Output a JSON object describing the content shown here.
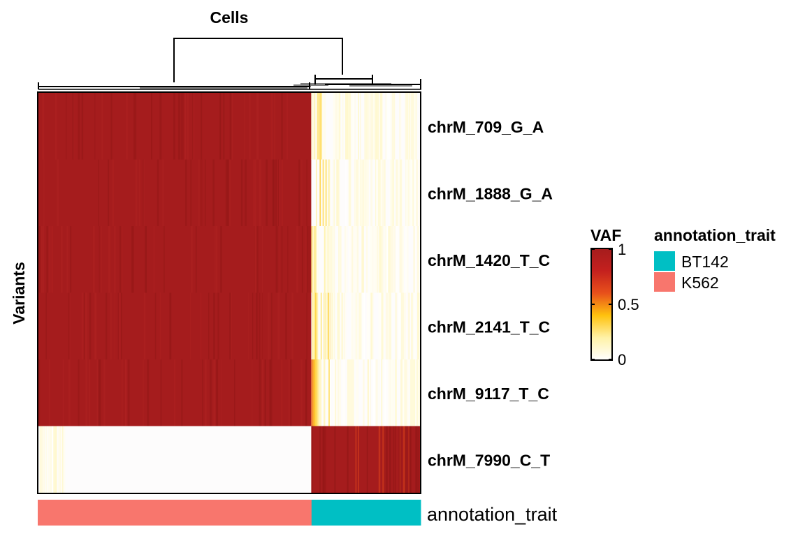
{
  "chart_data": {
    "type": "heatmap",
    "title": "Cells",
    "ylabel": "Variants",
    "rows": [
      "chrM_709_G_A",
      "chrM_1888_G_A",
      "chrM_1420_T_C",
      "chrM_2141_T_C",
      "chrM_9117_T_C",
      "chrM_7990_C_T"
    ],
    "column_groups": [
      {
        "name": "K562",
        "fraction": 0.715,
        "values": [
          1,
          1,
          1,
          1,
          1,
          0
        ]
      },
      {
        "name": "BT142",
        "fraction": 0.285,
        "values": [
          0.05,
          0.03,
          0.04,
          0.03,
          0.02,
          1
        ]
      }
    ],
    "colorbar": {
      "title": "VAF",
      "range": [
        0,
        1
      ],
      "ticks": [
        "1",
        "0.5",
        "0"
      ],
      "tick_values": [
        1,
        0.5,
        0
      ],
      "colors": [
        "#ffffff",
        "#fff2a8",
        "#ffc20e",
        "#e8501b",
        "#c4201e",
        "#a51c1d"
      ]
    },
    "annotation": {
      "label": "annotation_trait",
      "legend_title": "annotation_trait",
      "legend_items": [
        {
          "name": "BT142",
          "color": "#00bfc4"
        },
        {
          "name": "K562",
          "color": "#f8766d"
        }
      ]
    },
    "dendrogram": "column",
    "cell_colors": {
      "high": "#a51c1d",
      "low": "#fdfcfc"
    }
  }
}
